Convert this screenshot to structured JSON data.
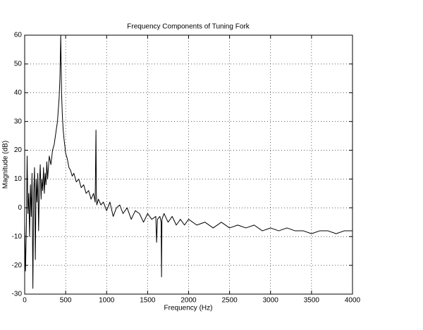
{
  "chart_data": {
    "type": "line",
    "title": "Frequency Components of Tuning Fork",
    "x_label": "Frequency (Hz)",
    "y_label": "Magnitude (dB)",
    "x": [
      0,
      10,
      20,
      30,
      40,
      50,
      60,
      70,
      80,
      90,
      100,
      110,
      120,
      130,
      140,
      150,
      160,
      170,
      180,
      190,
      200,
      210,
      220,
      230,
      240,
      250,
      260,
      270,
      280,
      290,
      300,
      320,
      340,
      360,
      380,
      400,
      410,
      420,
      430,
      435,
      440,
      445,
      450,
      460,
      470,
      480,
      500,
      520,
      540,
      560,
      580,
      600,
      630,
      660,
      690,
      720,
      750,
      780,
      810,
      840,
      860,
      870,
      875,
      880,
      900,
      930,
      960,
      1000,
      1040,
      1080,
      1120,
      1160,
      1200,
      1250,
      1300,
      1350,
      1400,
      1450,
      1500,
      1550,
      1600,
      1610,
      1620,
      1650,
      1665,
      1670,
      1675,
      1700,
      1750,
      1800,
      1850,
      1900,
      1950,
      2000,
      2100,
      2200,
      2300,
      2400,
      2500,
      2600,
      2700,
      2800,
      2900,
      3000,
      3100,
      3200,
      3300,
      3400,
      3500,
      3600,
      3700,
      3800,
      3900,
      4000
    ],
    "series": [
      {
        "color": "#000000",
        "values": [
          -5,
          -22,
          -8,
          18,
          -2,
          5,
          -10,
          8,
          -3,
          12,
          -28,
          5,
          14,
          -18,
          10,
          2,
          12,
          -8,
          8,
          15,
          3,
          10,
          6,
          14,
          5,
          12,
          8,
          16,
          10,
          14,
          18,
          15,
          20,
          22,
          26,
          30,
          34,
          38,
          45,
          52,
          60,
          50,
          40,
          32,
          27,
          24,
          19,
          17,
          14,
          13,
          11,
          12,
          9,
          10,
          7,
          8,
          5,
          6,
          3,
          5,
          2,
          27,
          5,
          1,
          3,
          1,
          2,
          -1,
          2,
          -3,
          0,
          1,
          -2,
          0,
          -4,
          -1,
          -2,
          -5,
          -2,
          -4,
          -3,
          -12,
          -4,
          -3,
          -5,
          -24,
          -4,
          -2,
          -5,
          -3,
          -6,
          -4,
          -6,
          -4,
          -6,
          -5,
          -7,
          -5,
          -7,
          -6,
          -7,
          -6,
          -8,
          -7,
          -8,
          -7,
          -8,
          -8,
          -9,
          -8,
          -8,
          -9,
          -8,
          -8
        ]
      }
    ],
    "xlim": [
      0,
      4000
    ],
    "ylim": [
      -30,
      60
    ],
    "xticks": [
      0,
      500,
      1000,
      1500,
      2000,
      2500,
      3000,
      3500,
      4000
    ],
    "yticks": [
      -30,
      -20,
      -10,
      0,
      10,
      20,
      30,
      40,
      50,
      60
    ],
    "grid": true
  }
}
